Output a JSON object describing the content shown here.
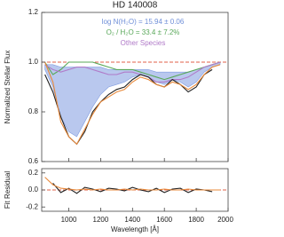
{
  "chart_data": [
    {
      "type": "line",
      "title": "HD 140008",
      "y_label": "Normalized Stellar Flux",
      "x": [
        850,
        900,
        950,
        1000,
        1050,
        1100,
        1150,
        1200,
        1250,
        1300,
        1350,
        1400,
        1450,
        1500,
        1550,
        1600,
        1650,
        1700,
        1750,
        1800,
        1850,
        1900,
        1950
      ],
      "xlim": [
        830,
        2000
      ],
      "xticks": [
        1000,
        1200,
        1400,
        1600,
        1800,
        2000
      ],
      "ylim": [
        0.6,
        1.2
      ],
      "yticks": [
        0.6,
        0.8,
        {
          "value": 1,
          "label": "1.0"
        },
        {
          "value": 1.2,
          "label": "1.2"
        }
      ],
      "hline": {
        "value": 1,
        "color": "#e0604a"
      },
      "bands": [
        {
          "color": "#7f9be0",
          "upper": [
            0.99,
            0.99,
            0.98,
            0.98,
            0.98,
            0.98,
            0.98,
            0.98,
            0.97,
            0.97,
            0.97,
            0.97,
            0.97,
            0.97,
            0.96,
            0.96,
            0.96,
            0.96,
            0.96,
            0.97,
            0.98,
            0.99,
            1.0
          ],
          "lower": [
            0.97,
            0.9,
            0.78,
            0.72,
            0.7,
            0.76,
            0.82,
            0.87,
            0.9,
            0.91,
            0.92,
            0.94,
            0.95,
            0.94,
            0.92,
            0.91,
            0.93,
            0.92,
            0.9,
            0.92,
            0.96,
            0.98,
            0.99
          ]
        }
      ],
      "series": [
        {
          "color": "#5aa85a",
          "values": [
            1.0,
            0.95,
            0.97,
            1.0,
            1.0,
            1.0,
            1.0,
            0.99,
            0.98,
            0.97,
            0.97,
            0.97,
            0.96,
            0.95,
            0.94,
            0.93,
            0.94,
            0.95,
            0.96,
            0.97,
            0.98,
            0.99,
            1.0
          ]
        },
        {
          "color": "#b07ac8",
          "values": [
            0.99,
            0.97,
            0.96,
            0.97,
            0.98,
            0.98,
            0.97,
            0.96,
            0.95,
            0.95,
            0.96,
            0.96,
            0.95,
            0.94,
            0.92,
            0.92,
            0.93,
            0.93,
            0.94,
            0.96,
            0.98,
            0.99,
            1.0
          ]
        },
        {
          "color": "#222222",
          "values": [
            0.95,
            0.88,
            0.78,
            0.7,
            0.67,
            0.72,
            0.8,
            0.84,
            0.87,
            0.89,
            0.9,
            0.93,
            0.95,
            0.94,
            0.91,
            0.9,
            0.93,
            0.91,
            0.88,
            0.9,
            0.95,
            0.97,
            null
          ]
        },
        {
          "color": "#e8893a",
          "values": [
            1.0,
            0.92,
            0.76,
            0.7,
            0.67,
            0.73,
            0.79,
            0.84,
            0.86,
            0.88,
            0.89,
            0.92,
            0.94,
            0.93,
            0.91,
            0.9,
            0.92,
            0.91,
            0.89,
            0.91,
            0.95,
            0.98,
            0.99
          ]
        }
      ],
      "annotations": [
        {
          "text": "log N(H₂O) = 15.94 ± 0.06",
          "color": "#6f8fd8"
        },
        {
          "text": "O₂ / H₂O =  33.4 ±  7.2%",
          "color": "#5aa85a"
        },
        {
          "text": "Other Species",
          "color": "#b07ac8"
        }
      ]
    },
    {
      "type": "line",
      "y_label": "Fit Residual",
      "x_label": "Wavelength [Å]",
      "x": [
        850,
        900,
        950,
        1000,
        1050,
        1100,
        1150,
        1200,
        1250,
        1300,
        1350,
        1400,
        1450,
        1500,
        1550,
        1600,
        1650,
        1700,
        1750,
        1800,
        1850,
        1900,
        1950
      ],
      "xlim": [
        830,
        2000
      ],
      "xticks": [
        1000,
        1200,
        1400,
        1600,
        1800,
        2000
      ],
      "ylim": [
        -0.25,
        0.25
      ],
      "yticks": [
        -0.2,
        {
          "value": 0,
          "label": "0.0"
        },
        0.2
      ],
      "hline": {
        "value": 0,
        "color": "#e0604a"
      },
      "series": [
        {
          "color": "#222222",
          "values": [
            null,
            0.08,
            -0.03,
            0.02,
            -0.04,
            0.03,
            0.01,
            -0.02,
            0.02,
            0.01,
            -0.01,
            0.03,
            0.0,
            -0.02,
            0.02,
            -0.03,
            0.01,
            0.02,
            -0.03,
            0.01,
            0.0,
            -0.02,
            null
          ]
        },
        {
          "color": "#e8893a",
          "values": [
            0.15,
            0.06,
            0.02,
            0.01,
            0.0,
            0.01,
            0.0,
            0.01,
            0.0,
            0.0,
            0.01,
            0.0,
            0.01,
            0.0,
            0.0,
            0.01,
            0.0,
            0.0,
            0.01,
            0.0,
            0.0,
            0.0,
            0.0
          ]
        }
      ]
    }
  ]
}
